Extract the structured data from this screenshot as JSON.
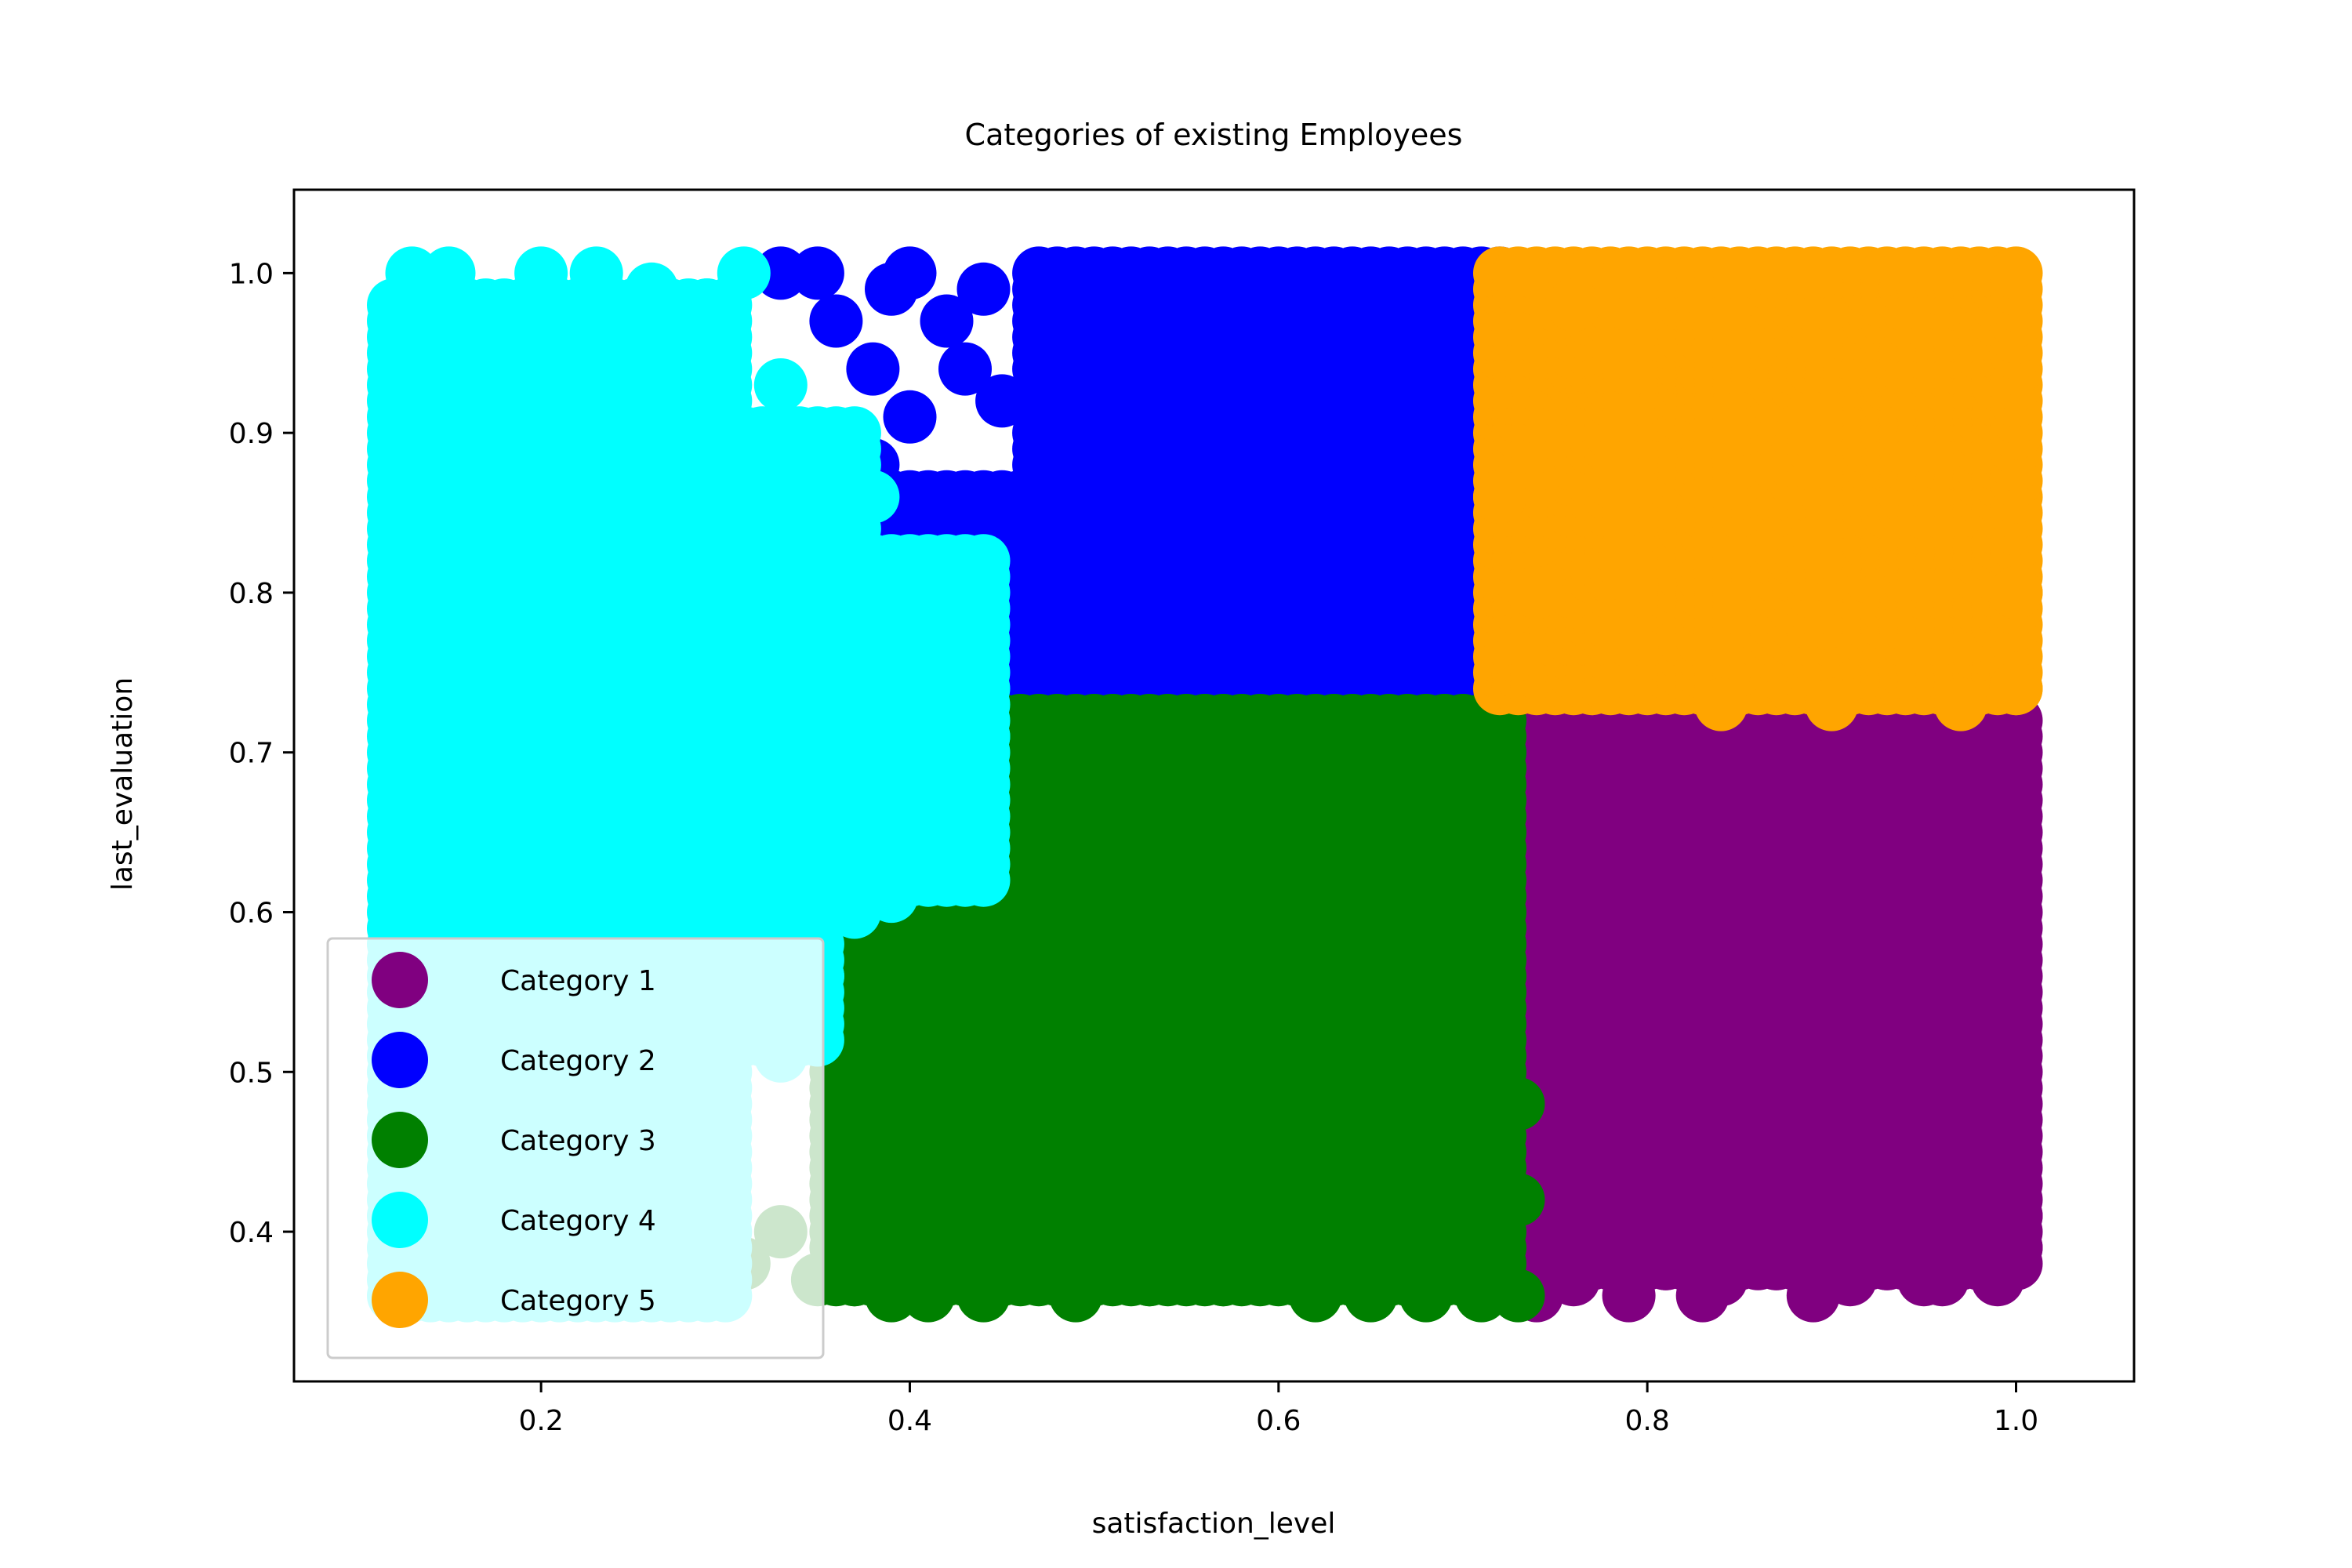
{
  "chart_data": {
    "type": "scatter",
    "title": "Categories of existing Employees",
    "xlabel": "satisfaction_level",
    "ylabel": "last_evaluation",
    "xlim": [
      0.066,
      1.064
    ],
    "ylim": [
      0.3063,
      1.0522
    ],
    "grid": false,
    "legend_position": "lower-left",
    "x_ticks": [
      {
        "value": 0.2,
        "label": "0.2"
      },
      {
        "value": 0.4,
        "label": "0.4"
      },
      {
        "value": 0.6,
        "label": "0.6"
      },
      {
        "value": 0.8,
        "label": "0.8"
      },
      {
        "value": 1.0,
        "label": "1.0"
      }
    ],
    "y_ticks": [
      {
        "value": 0.4,
        "label": "0.4"
      },
      {
        "value": 0.5,
        "label": "0.5"
      },
      {
        "value": 0.6,
        "label": "0.6"
      },
      {
        "value": 0.7,
        "label": "0.7"
      },
      {
        "value": 0.8,
        "label": "0.8"
      },
      {
        "value": 0.9,
        "label": "0.9"
      },
      {
        "value": 1.0,
        "label": "1.0"
      }
    ],
    "series": [
      {
        "name": "Category 1",
        "color": "#800080",
        "regions": [
          {
            "x": [
              0.72,
              1.0
            ],
            "y": [
              0.38,
              0.72
            ]
          }
        ],
        "extra_points": [
          [
            0.74,
            0.36
          ],
          [
            0.76,
            0.37
          ],
          [
            0.79,
            0.36
          ],
          [
            0.81,
            0.38
          ],
          [
            0.83,
            0.36
          ],
          [
            0.84,
            0.37
          ],
          [
            0.87,
            0.38
          ],
          [
            0.89,
            0.36
          ],
          [
            0.91,
            0.37
          ],
          [
            0.93,
            0.38
          ],
          [
            0.95,
            0.37
          ],
          [
            0.96,
            0.37
          ],
          [
            0.99,
            0.37
          ],
          [
            1.0,
            0.39
          ],
          [
            1.0,
            0.41
          ],
          [
            0.85,
            0.41
          ],
          [
            0.88,
            0.42
          ],
          [
            0.92,
            0.41
          ],
          [
            0.98,
            0.43
          ],
          [
            0.99,
            0.47
          ]
        ]
      },
      {
        "name": "Category 2",
        "color": "#0000ff",
        "regions": [
          {
            "x": [
              0.47,
              0.72
            ],
            "y": [
              0.72,
              1.0
            ]
          },
          {
            "x": [
              0.39,
              0.47
            ],
            "y": [
              0.75,
              0.86
            ]
          }
        ],
        "extra_points": [
          [
            0.33,
            1.0
          ],
          [
            0.35,
            1.0
          ],
          [
            0.36,
            0.97
          ],
          [
            0.38,
            0.94
          ],
          [
            0.4,
            1.0
          ],
          [
            0.39,
            0.99
          ],
          [
            0.42,
            0.97
          ],
          [
            0.44,
            0.99
          ],
          [
            0.43,
            0.94
          ],
          [
            0.45,
            0.92
          ],
          [
            0.4,
            0.91
          ],
          [
            0.38,
            0.88
          ],
          [
            0.4,
            0.85
          ],
          [
            0.43,
            0.82
          ],
          [
            0.45,
            0.8
          ],
          [
            0.47,
            0.78
          ],
          [
            0.7,
            0.7
          ],
          [
            0.72,
            0.7
          ]
        ]
      },
      {
        "name": "Category 3",
        "color": "#008000",
        "regions": [
          {
            "x": [
              0.44,
              0.72
            ],
            "y": [
              0.37,
              0.72
            ]
          },
          {
            "x": [
              0.36,
              0.44
            ],
            "y": [
              0.37,
              0.6
            ]
          }
        ],
        "extra_points": [
          [
            0.31,
            0.38
          ],
          [
            0.33,
            0.4
          ],
          [
            0.35,
            0.37
          ],
          [
            0.37,
            0.37
          ],
          [
            0.39,
            0.36
          ],
          [
            0.41,
            0.36
          ],
          [
            0.44,
            0.36
          ],
          [
            0.49,
            0.36
          ],
          [
            0.53,
            0.37
          ],
          [
            0.57,
            0.37
          ],
          [
            0.62,
            0.36
          ],
          [
            0.65,
            0.36
          ],
          [
            0.68,
            0.36
          ],
          [
            0.71,
            0.36
          ],
          [
            0.73,
            0.36
          ],
          [
            0.73,
            0.48
          ],
          [
            0.73,
            0.42
          ],
          [
            0.39,
            0.62
          ],
          [
            0.41,
            0.65
          ],
          [
            0.42,
            0.68
          ]
        ]
      },
      {
        "name": "Category 4",
        "color": "#00ffff",
        "regions": [
          {
            "x": [
              0.12,
              0.3
            ],
            "y": [
              0.36,
              0.98
            ]
          },
          {
            "x": [
              0.3,
              0.44
            ],
            "y": [
              0.62,
              0.82
            ]
          },
          {
            "x": [
              0.3,
              0.37
            ],
            "y": [
              0.82,
              0.9
            ]
          },
          {
            "x": [
              0.3,
              0.35
            ],
            "y": [
              0.52,
              0.62
            ]
          }
        ],
        "extra_points": [
          [
            0.13,
            1.0
          ],
          [
            0.15,
            1.0
          ],
          [
            0.2,
            1.0
          ],
          [
            0.23,
            1.0
          ],
          [
            0.31,
            1.0
          ],
          [
            0.29,
            0.98
          ],
          [
            0.26,
            0.99
          ],
          [
            0.33,
            0.93
          ],
          [
            0.35,
            0.88
          ],
          [
            0.38,
            0.86
          ],
          [
            0.38,
            0.8
          ],
          [
            0.41,
            0.77
          ],
          [
            0.43,
            0.74
          ],
          [
            0.44,
            0.71
          ],
          [
            0.42,
            0.67
          ],
          [
            0.4,
            0.64
          ],
          [
            0.39,
            0.61
          ],
          [
            0.37,
            0.6
          ],
          [
            0.35,
            0.56
          ],
          [
            0.33,
            0.51
          ]
        ]
      },
      {
        "name": "Category 5",
        "color": "#ffa500",
        "regions": [
          {
            "x": [
              0.72,
              1.0
            ],
            "y": [
              0.74,
              1.0
            ]
          }
        ],
        "extra_points": [
          [
            0.72,
            0.86
          ],
          [
            0.74,
            0.8
          ],
          [
            0.76,
            0.98
          ],
          [
            0.84,
            0.73
          ],
          [
            0.9,
            0.73
          ],
          [
            0.97,
            0.73
          ],
          [
            1.0,
            0.74
          ],
          [
            1.0,
            0.8
          ]
        ]
      }
    ]
  }
}
